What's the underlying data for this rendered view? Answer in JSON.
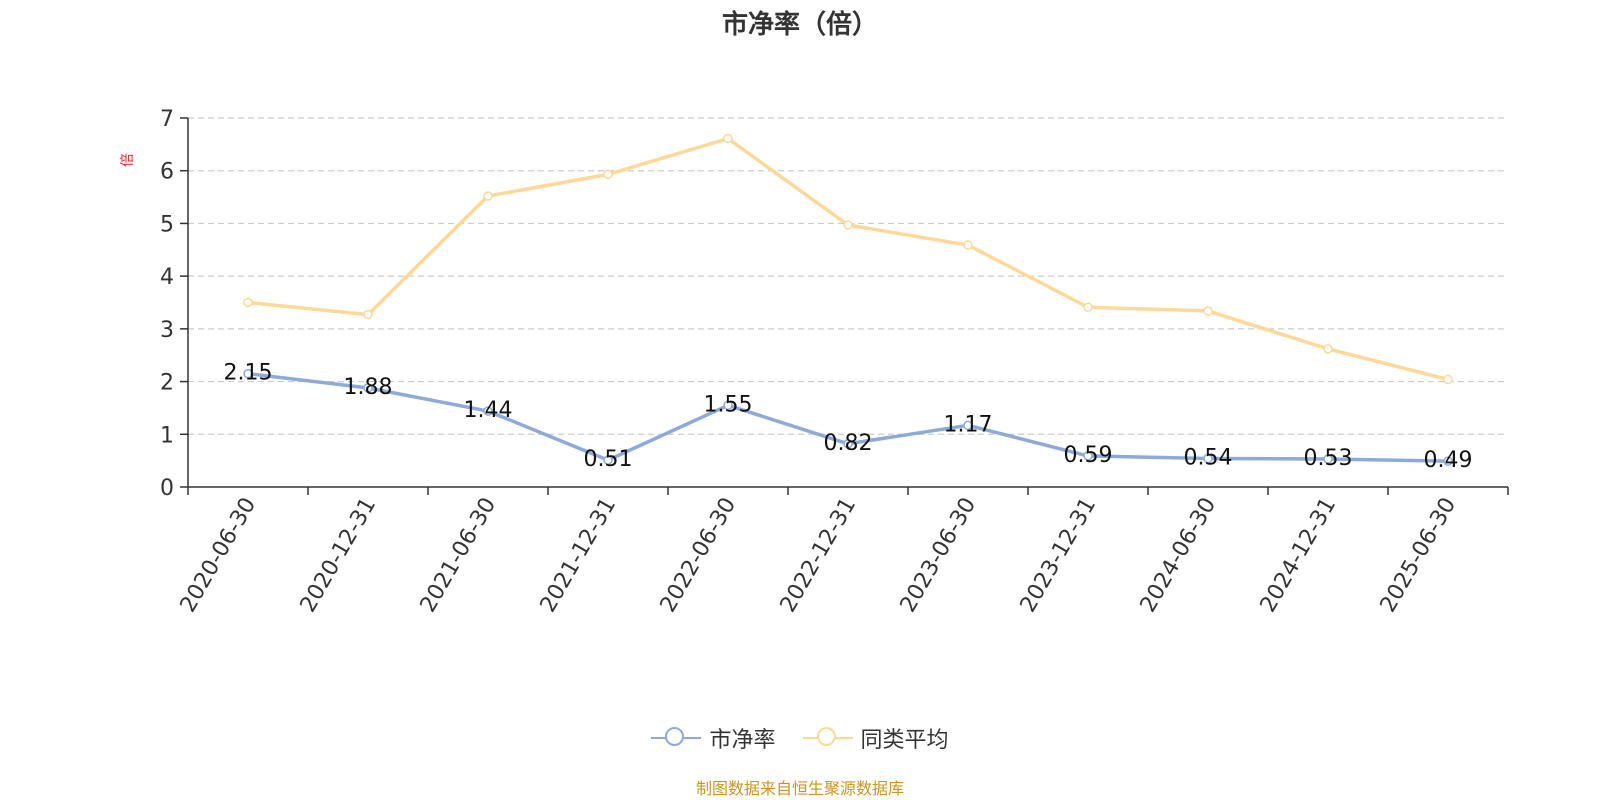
{
  "chart_data": {
    "type": "line",
    "title": "市净率（倍）",
    "ylabel": "倍",
    "xlabel": "",
    "categories": [
      "2020-06-30",
      "2020-12-31",
      "2021-06-30",
      "2021-12-31",
      "2022-06-30",
      "2022-12-31",
      "2023-06-30",
      "2023-12-31",
      "2024-06-30",
      "2024-12-31",
      "2025-06-30"
    ],
    "ylim": [
      0,
      7
    ],
    "yticks": [
      0,
      1,
      2,
      3,
      4,
      5,
      6,
      7
    ],
    "grid": true,
    "legend_position": "bottom-center",
    "series": [
      {
        "name": "市净率",
        "color": "#8eaad8",
        "show_labels": true,
        "values": [
          2.15,
          1.88,
          1.44,
          0.51,
          1.55,
          0.82,
          1.17,
          0.59,
          0.54,
          0.53,
          0.49
        ],
        "labels": [
          "2.15",
          "1.88",
          "1.44",
          "0.51",
          "1.55",
          "0.82",
          "1.17",
          "0.59",
          "0.54",
          "0.53",
          "0.49"
        ]
      },
      {
        "name": "同类平均",
        "color": "#fdd898",
        "show_labels": false,
        "values": [
          3.5,
          3.27,
          5.52,
          5.93,
          6.61,
          4.97,
          4.59,
          3.41,
          3.34,
          2.62,
          2.04
        ]
      }
    ]
  },
  "source_note": "制图数据来自恒生聚源数据库"
}
